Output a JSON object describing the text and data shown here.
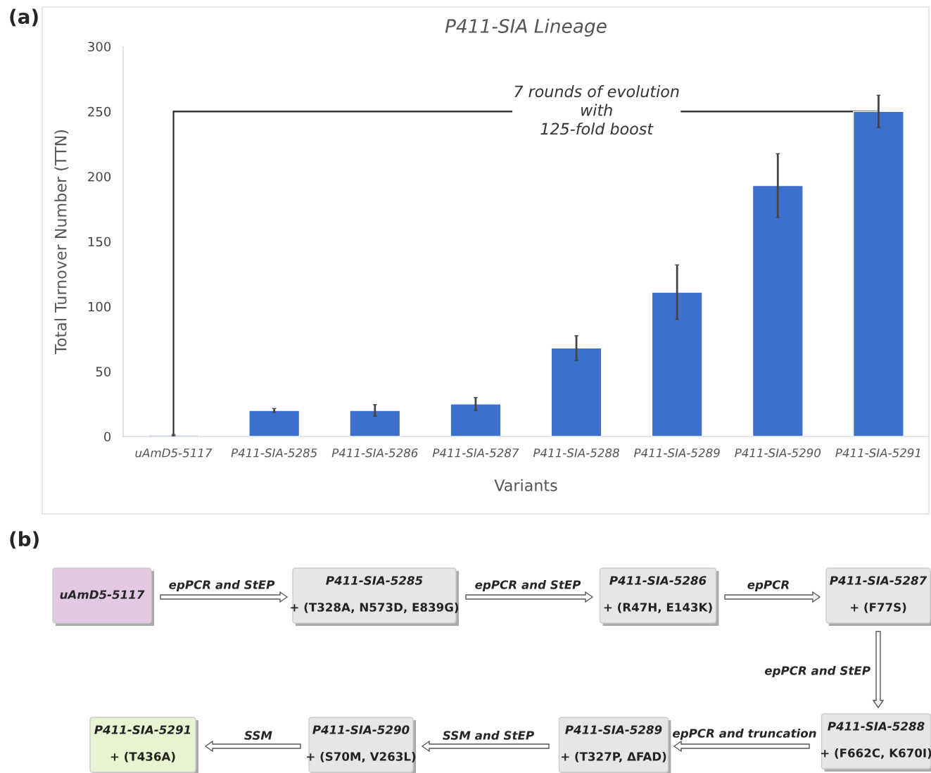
{
  "chart_data": [
    {
      "type": "bar",
      "title": "P411-SIA Lineage",
      "xlabel": "Variants",
      "ylabel": "Total Turnover Number (TTN)",
      "categories": [
        "uAmD5-5117",
        "P411-SIA-5285",
        "P411-SIA-5286",
        "P411-SIA-5287",
        "P411-SIA-5288",
        "P411-SIA-5289",
        "P411-SIA-5290",
        "P411-SIA-5291"
      ],
      "values": [
        1,
        20,
        20,
        25,
        68,
        111,
        193,
        250
      ],
      "errors": [
        0.5,
        1.5,
        4.5,
        5,
        9.5,
        21,
        24.5,
        12.5
      ],
      "color": "#3d6fcc",
      "ylim": [
        0,
        300
      ],
      "yticks": [
        0,
        50,
        100,
        150,
        200,
        250,
        300
      ],
      "annotations": [
        "(a)"
      ],
      "ref_lines": [
        {
          "axis": "y",
          "value": 250,
          "label": "7 rounds of evolution\nwith\n125-fold boost",
          "color": "#222222"
        }
      ]
    },
    {
      "type": "other",
      "annotations": [
        "(b)",
        "uAmD5-5117",
        "P411-SIA-5285\n+ (T328A, N573D, E839G)",
        "P411-SIA-5286\n+ (R47H, E143K)",
        "P411-SIA-5287\n+ (F77S)",
        "P411-SIA-5288\n+ (F662C, K670I)",
        "P411-SIA-5289\n+ (T327P, ΔFAD)",
        "P411-SIA-5290\n+ (S70M, V263L)",
        "P411-SIA-5291\n+ (T436A)",
        "epPCR and StEP",
        "epPCR and StEP",
        "epPCR",
        "epPCR and StEP",
        "epPCR and truncation",
        "SSM and StEP",
        "SSM"
      ]
    }
  ]
}
